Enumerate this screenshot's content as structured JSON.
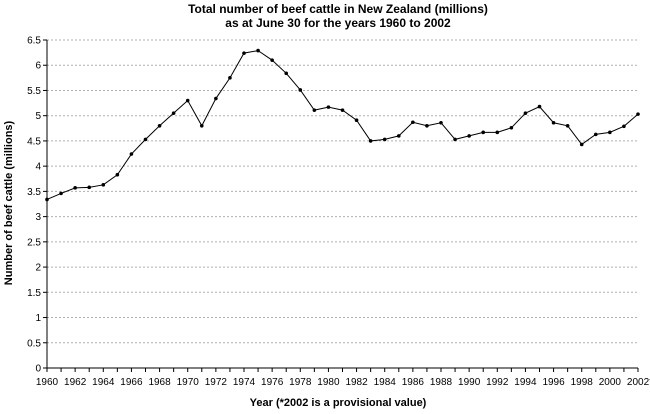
{
  "chart_data": {
    "type": "line",
    "title_line1": "Total number of beef cattle in New Zealand (millions)",
    "title_line2": "as at June 30 for the years 1960 to 2002",
    "xlabel": "Year (*2002 is a provisional value)",
    "ylabel": "Number of beef cattle (millions)",
    "ylim": [
      0,
      6.5
    ],
    "xlim": [
      1960,
      2002
    ],
    "grid": "horizontal dashed",
    "legend": "none",
    "colors": {
      "line": "#000000",
      "grid": "#b0b0b0"
    },
    "y_ticks": [
      {
        "value": 0,
        "label": "0"
      },
      {
        "value": 0.5,
        "label": "0.5"
      },
      {
        "value": 1,
        "label": "1"
      },
      {
        "value": 1.5,
        "label": "1.5"
      },
      {
        "value": 2,
        "label": "2"
      },
      {
        "value": 2.5,
        "label": "2.5"
      },
      {
        "value": 3,
        "label": "3"
      },
      {
        "value": 3.5,
        "label": "3.5"
      },
      {
        "value": 4,
        "label": "4"
      },
      {
        "value": 4.5,
        "label": "4.5"
      },
      {
        "value": 5,
        "label": "5"
      },
      {
        "value": 5.5,
        "label": "5.5"
      },
      {
        "value": 6,
        "label": "6"
      },
      {
        "value": 6.5,
        "label": "6.5"
      }
    ],
    "x_ticks": [
      {
        "value": 1960,
        "label": "1960"
      },
      {
        "value": 1962,
        "label": "1962"
      },
      {
        "value": 1964,
        "label": "1964"
      },
      {
        "value": 1966,
        "label": "1966"
      },
      {
        "value": 1968,
        "label": "1968"
      },
      {
        "value": 1970,
        "label": "1970"
      },
      {
        "value": 1972,
        "label": "1972"
      },
      {
        "value": 1974,
        "label": "1974"
      },
      {
        "value": 1976,
        "label": "1976"
      },
      {
        "value": 1978,
        "label": "1978"
      },
      {
        "value": 1980,
        "label": "1980"
      },
      {
        "value": 1982,
        "label": "1982"
      },
      {
        "value": 1984,
        "label": "1984"
      },
      {
        "value": 1986,
        "label": "1986"
      },
      {
        "value": 1988,
        "label": "1988"
      },
      {
        "value": 1990,
        "label": "1990"
      },
      {
        "value": 1992,
        "label": "1992"
      },
      {
        "value": 1994,
        "label": "1994"
      },
      {
        "value": 1996,
        "label": "1996"
      },
      {
        "value": 1998,
        "label": "1998"
      },
      {
        "value": 2000,
        "label": "2000"
      },
      {
        "value": 2002,
        "label": "2002*"
      }
    ],
    "x": [
      1960,
      1961,
      1962,
      1963,
      1964,
      1965,
      1966,
      1967,
      1968,
      1969,
      1970,
      1971,
      1972,
      1973,
      1974,
      1975,
      1976,
      1977,
      1978,
      1979,
      1980,
      1981,
      1982,
      1983,
      1984,
      1985,
      1986,
      1987,
      1988,
      1989,
      1990,
      1991,
      1992,
      1993,
      1994,
      1995,
      1996,
      1997,
      1998,
      1999,
      2000,
      2001,
      2002
    ],
    "series": [
      {
        "values": [
          3.34,
          3.46,
          3.57,
          3.58,
          3.63,
          3.83,
          4.24,
          4.53,
          4.8,
          5.05,
          5.3,
          4.8,
          5.34,
          5.75,
          6.24,
          6.29,
          6.1,
          5.84,
          5.51,
          5.11,
          5.17,
          5.11,
          4.91,
          4.5,
          4.53,
          4.6,
          4.87,
          4.8,
          4.86,
          4.53,
          4.6,
          4.67,
          4.67,
          4.76,
          5.05,
          5.18,
          4.86,
          4.8,
          4.43,
          4.63,
          4.67,
          4.79,
          5.03
        ]
      }
    ]
  }
}
